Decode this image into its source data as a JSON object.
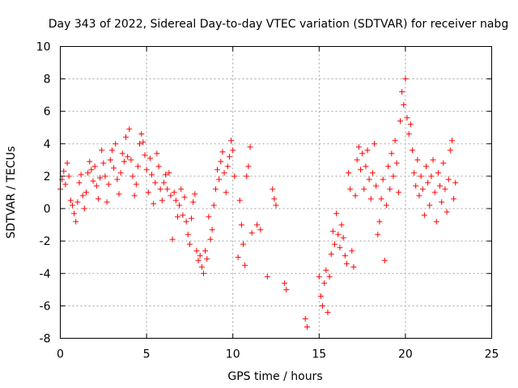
{
  "chart_data": {
    "type": "scatter",
    "title": "Day 343 of 2022, Sidereal Day-to-day VTEC variation (SDTVAR) for receiver nabg",
    "xlabel": "GPS time / hours",
    "ylabel": "SDTVAR / TECUs",
    "xlim": [
      0,
      25
    ],
    "ylim": [
      -8,
      10
    ],
    "xticks": [
      0,
      5,
      10,
      15,
      20,
      25
    ],
    "yticks": [
      -8,
      -6,
      -4,
      -2,
      0,
      2,
      4,
      6,
      8,
      10
    ],
    "xtick_labels": [
      "0",
      "5",
      "10",
      "15",
      "20",
      "25"
    ],
    "ytick_labels": [
      "-8",
      "-6",
      "-4",
      "-2",
      "0",
      "2",
      "4",
      "6",
      "8",
      "10"
    ],
    "grid": true,
    "marker": "+",
    "color": "#ff0000",
    "series": [
      {
        "name": "SDTVAR",
        "points": [
          [
            0.0,
            1.2
          ],
          [
            0.1,
            1.8
          ],
          [
            0.2,
            2.3
          ],
          [
            0.3,
            1.5
          ],
          [
            0.4,
            2.8
          ],
          [
            0.5,
            2.0
          ],
          [
            0.6,
            0.5
          ],
          [
            0.7,
            0.2
          ],
          [
            0.8,
            -0.3
          ],
          [
            0.9,
            -0.8
          ],
          [
            1.0,
            0.4
          ],
          [
            1.1,
            1.6
          ],
          [
            1.2,
            2.1
          ],
          [
            1.3,
            0.8
          ],
          [
            1.4,
            0.0
          ],
          [
            1.5,
            1.0
          ],
          [
            1.6,
            2.2
          ],
          [
            1.7,
            2.9
          ],
          [
            1.8,
            2.4
          ],
          [
            1.9,
            1.7
          ],
          [
            2.0,
            2.6
          ],
          [
            2.1,
            1.4
          ],
          [
            2.2,
            0.6
          ],
          [
            2.3,
            1.9
          ],
          [
            2.4,
            3.6
          ],
          [
            2.5,
            2.8
          ],
          [
            2.6,
            2.0
          ],
          [
            2.7,
            0.4
          ],
          [
            2.8,
            1.5
          ],
          [
            2.9,
            3.0
          ],
          [
            3.0,
            3.6
          ],
          [
            3.1,
            2.5
          ],
          [
            3.2,
            4.0
          ],
          [
            3.3,
            1.8
          ],
          [
            3.4,
            0.9
          ],
          [
            3.5,
            2.2
          ],
          [
            3.6,
            3.4
          ],
          [
            3.7,
            2.9
          ],
          [
            3.8,
            4.4
          ],
          [
            3.9,
            3.2
          ],
          [
            4.0,
            4.9
          ],
          [
            4.1,
            3.0
          ],
          [
            4.2,
            2.0
          ],
          [
            4.3,
            0.8
          ],
          [
            4.4,
            1.5
          ],
          [
            4.5,
            2.6
          ],
          [
            4.6,
            4.0
          ],
          [
            4.7,
            4.6
          ],
          [
            4.8,
            4.1
          ],
          [
            4.9,
            3.3
          ],
          [
            5.0,
            2.4
          ],
          [
            5.1,
            1.0
          ],
          [
            5.2,
            3.1
          ],
          [
            5.3,
            2.1
          ],
          [
            5.4,
            0.3
          ],
          [
            5.5,
            1.6
          ],
          [
            5.6,
            3.4
          ],
          [
            5.7,
            2.6
          ],
          [
            5.8,
            1.2
          ],
          [
            5.9,
            0.5
          ],
          [
            6.0,
            1.6
          ],
          [
            6.1,
            2.1
          ],
          [
            6.2,
            1.2
          ],
          [
            6.3,
            2.2
          ],
          [
            6.4,
            0.8
          ],
          [
            6.5,
            -1.9
          ],
          [
            6.6,
            1.0
          ],
          [
            6.7,
            0.5
          ],
          [
            6.8,
            -0.5
          ],
          [
            6.9,
            0.2
          ],
          [
            7.0,
            1.2
          ],
          [
            7.1,
            -0.4
          ],
          [
            7.2,
            0.7
          ],
          [
            7.3,
            -0.8
          ],
          [
            7.4,
            -1.6
          ],
          [
            7.5,
            -2.2
          ],
          [
            7.6,
            -0.6
          ],
          [
            7.7,
            0.4
          ],
          [
            7.8,
            0.9
          ],
          [
            7.9,
            -2.6
          ],
          [
            8.0,
            -3.2
          ],
          [
            8.1,
            -2.9
          ],
          [
            8.2,
            -3.6
          ],
          [
            8.3,
            -4.0
          ],
          [
            8.4,
            -2.6
          ],
          [
            8.5,
            -3.1
          ],
          [
            8.6,
            -0.5
          ],
          [
            8.7,
            -1.9
          ],
          [
            8.8,
            -1.3
          ],
          [
            8.9,
            0.2
          ],
          [
            9.0,
            1.2
          ],
          [
            9.1,
            2.4
          ],
          [
            9.2,
            1.8
          ],
          [
            9.3,
            2.9
          ],
          [
            9.4,
            3.5
          ],
          [
            9.5,
            2.2
          ],
          [
            9.6,
            1.0
          ],
          [
            9.7,
            2.6
          ],
          [
            9.8,
            3.2
          ],
          [
            9.9,
            4.2
          ],
          [
            10.0,
            3.6
          ],
          [
            10.1,
            2.0
          ],
          [
            10.3,
            -3.0
          ],
          [
            10.4,
            0.5
          ],
          [
            10.5,
            -1.0
          ],
          [
            10.6,
            -2.2
          ],
          [
            10.7,
            -3.5
          ],
          [
            10.8,
            2.0
          ],
          [
            10.9,
            2.6
          ],
          [
            11.0,
            3.8
          ],
          [
            11.1,
            -1.5
          ],
          [
            11.4,
            -1.0
          ],
          [
            11.6,
            -1.3
          ],
          [
            12.0,
            -4.2
          ],
          [
            12.3,
            1.2
          ],
          [
            12.4,
            0.6
          ],
          [
            12.5,
            0.2
          ],
          [
            13.0,
            -4.6
          ],
          [
            13.1,
            -5.0
          ],
          [
            14.2,
            -6.8
          ],
          [
            14.3,
            -7.3
          ],
          [
            15.0,
            -4.2
          ],
          [
            15.1,
            -5.4
          ],
          [
            15.2,
            -6.0
          ],
          [
            15.3,
            -4.6
          ],
          [
            15.4,
            -3.8
          ],
          [
            15.5,
            -6.4
          ],
          [
            15.6,
            -4.2
          ],
          [
            15.7,
            -2.8
          ],
          [
            15.8,
            -1.4
          ],
          [
            15.9,
            -2.2
          ],
          [
            16.0,
            -0.3
          ],
          [
            16.1,
            -1.6
          ],
          [
            16.2,
            -2.4
          ],
          [
            16.3,
            -1.0
          ],
          [
            16.4,
            -1.8
          ],
          [
            16.5,
            -2.9
          ],
          [
            16.6,
            -3.4
          ],
          [
            16.7,
            2.2
          ],
          [
            16.8,
            1.2
          ],
          [
            16.9,
            -2.6
          ],
          [
            17.0,
            -3.6
          ],
          [
            17.1,
            0.8
          ],
          [
            17.2,
            3.0
          ],
          [
            17.3,
            3.8
          ],
          [
            17.4,
            2.4
          ],
          [
            17.5,
            3.4
          ],
          [
            17.6,
            1.2
          ],
          [
            17.7,
            2.6
          ],
          [
            17.8,
            3.6
          ],
          [
            17.9,
            1.8
          ],
          [
            18.0,
            0.6
          ],
          [
            18.1,
            2.2
          ],
          [
            18.2,
            4.0
          ],
          [
            18.3,
            1.4
          ],
          [
            18.4,
            -1.6
          ],
          [
            18.5,
            -0.8
          ],
          [
            18.6,
            0.6
          ],
          [
            18.7,
            1.8
          ],
          [
            18.8,
            -3.2
          ],
          [
            18.9,
            0.2
          ],
          [
            19.0,
            2.6
          ],
          [
            19.1,
            1.2
          ],
          [
            19.2,
            3.4
          ],
          [
            19.3,
            2.0
          ],
          [
            19.4,
            4.2
          ],
          [
            19.5,
            2.8
          ],
          [
            19.6,
            1.0
          ],
          [
            19.7,
            5.4
          ],
          [
            19.8,
            7.2
          ],
          [
            19.9,
            6.4
          ],
          [
            20.0,
            8.0
          ],
          [
            20.1,
            5.6
          ],
          [
            20.2,
            4.6
          ],
          [
            20.3,
            5.2
          ],
          [
            20.4,
            3.6
          ],
          [
            20.5,
            2.2
          ],
          [
            20.6,
            1.4
          ],
          [
            20.7,
            3.0
          ],
          [
            20.8,
            0.8
          ],
          [
            20.9,
            2.0
          ],
          [
            21.0,
            1.2
          ],
          [
            21.1,
            -0.4
          ],
          [
            21.2,
            2.6
          ],
          [
            21.3,
            1.6
          ],
          [
            21.4,
            0.2
          ],
          [
            21.5,
            2.0
          ],
          [
            21.6,
            3.0
          ],
          [
            21.7,
            1.0
          ],
          [
            21.8,
            -0.8
          ],
          [
            21.9,
            2.2
          ],
          [
            22.0,
            1.4
          ],
          [
            22.1,
            0.4
          ],
          [
            22.2,
            2.8
          ],
          [
            22.3,
            1.2
          ],
          [
            22.4,
            -0.2
          ],
          [
            22.5,
            1.8
          ],
          [
            22.6,
            3.6
          ],
          [
            22.7,
            4.2
          ],
          [
            22.8,
            0.6
          ],
          [
            22.9,
            1.6
          ]
        ]
      }
    ]
  }
}
